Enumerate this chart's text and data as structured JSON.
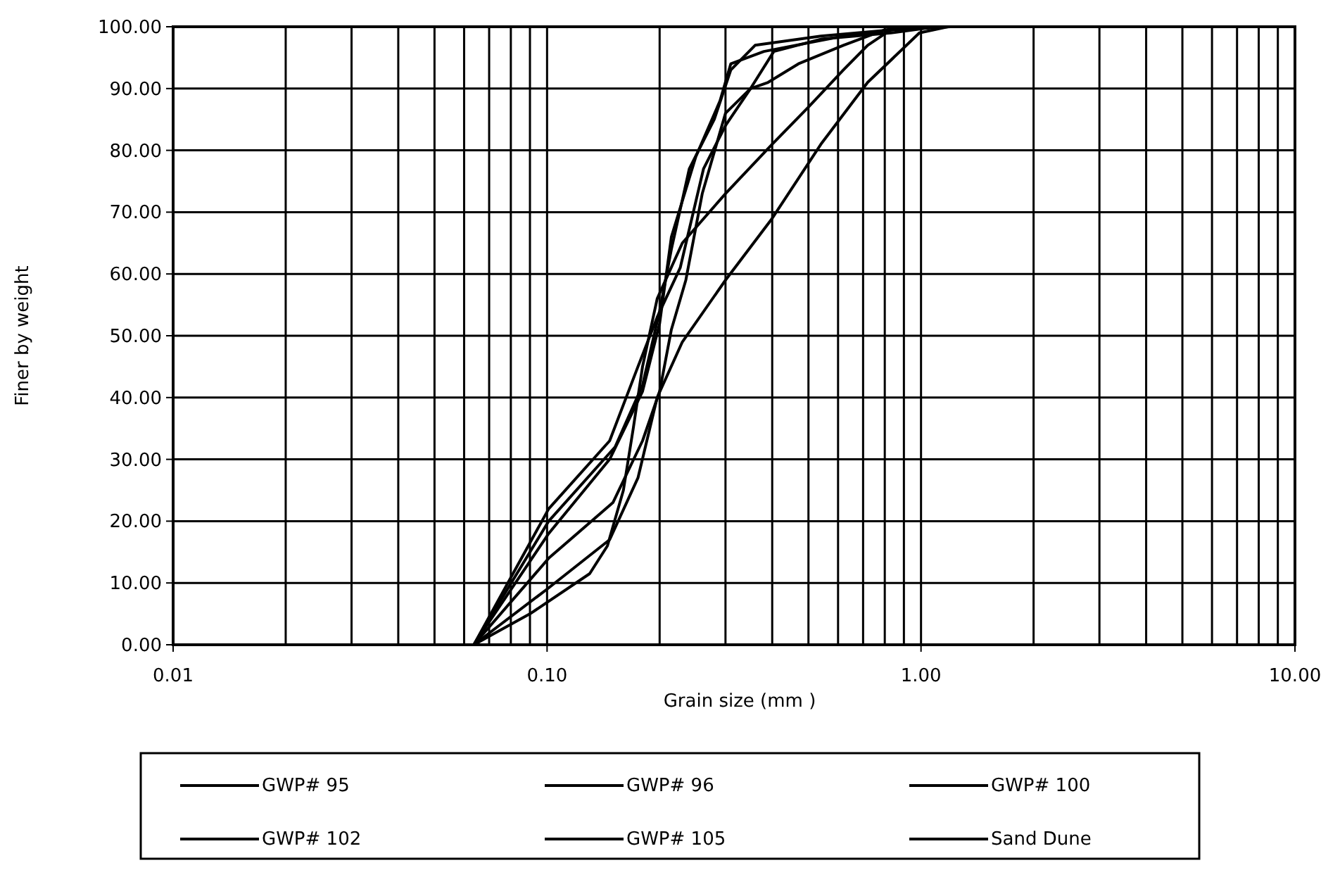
{
  "chart_data": {
    "type": "line",
    "xlabel": "Grain size (mm )",
    "ylabel": "Finer by weight",
    "log": "x",
    "xlim": [
      0.01,
      10
    ],
    "ylim": [
      0,
      100
    ],
    "xticks": [
      0.01,
      {
        "value": 0.1,
        "label": "0.10"
      },
      {
        "value": 1,
        "label": "1.00"
      },
      {
        "value": 10,
        "label": "10.00"
      }
    ],
    "yticks": [
      {
        "value": 0,
        "label": "0.00"
      },
      {
        "value": 10,
        "label": "10.00"
      },
      {
        "value": 20,
        "label": "20.00"
      },
      {
        "value": 30,
        "label": "30.00"
      },
      {
        "value": 40,
        "label": "40.00"
      },
      {
        "value": 50,
        "label": "50.00"
      },
      {
        "value": 60,
        "label": "60.00"
      },
      {
        "value": 70,
        "label": "70.00"
      },
      {
        "value": 80,
        "label": "80.00"
      },
      {
        "value": 90,
        "label": "90.00"
      },
      {
        "value": 100,
        "label": "100.00"
      }
    ],
    "grid": true,
    "legend": "bottom",
    "marker": "none",
    "line_style": "solid",
    "series": [
      {
        "name": "GWP# 95",
        "color": "#000000",
        "x": [
          0.0637,
          0.101,
          0.147,
          0.175,
          0.197,
          0.227,
          0.262,
          0.3,
          0.35,
          0.404,
          0.54,
          0.83,
          1.1
        ],
        "values": [
          0,
          22,
          33,
          45,
          53,
          61,
          77,
          84,
          90,
          96,
          98,
          99,
          100
        ]
      },
      {
        "name": "GWP# 96",
        "color": "#000000",
        "x": [
          0.0637,
          0.101,
          0.152,
          0.18,
          0.2,
          0.215,
          0.24,
          0.28,
          0.31,
          0.36,
          0.54,
          0.83,
          1.15
        ],
        "values": [
          0,
          20,
          32,
          42,
          54,
          64,
          77,
          85,
          93,
          97,
          98.5,
          99.5,
          100
        ]
      },
      {
        "name": "GWP# 100",
        "color": "#000000",
        "x": [
          0.0637,
          0.101,
          0.147,
          0.18,
          0.2,
          0.215,
          0.25,
          0.29,
          0.31,
          0.38,
          0.62,
          0.83,
          1.2
        ],
        "values": [
          0,
          18,
          30,
          41,
          52,
          66,
          79,
          88,
          94,
          96,
          98.5,
          99.5,
          100
        ]
      },
      {
        "name": "GWP# 102",
        "color": "#000000",
        "x": [
          0.0637,
          0.101,
          0.15,
          0.18,
          0.2,
          0.215,
          0.235,
          0.26,
          0.3,
          0.35,
          0.39,
          0.47,
          0.62,
          0.8,
          0.94
        ],
        "values": [
          0,
          14,
          23,
          33,
          41,
          51,
          59,
          73,
          86,
          90,
          91,
          94,
          97,
          99.5,
          100
        ]
      },
      {
        "name": "GWP# 105",
        "color": "#000000",
        "x": [
          0.0637,
          0.09,
          0.13,
          0.145,
          0.16,
          0.17,
          0.18,
          0.197,
          0.23,
          0.3,
          0.4,
          0.5,
          0.62,
          0.72,
          0.83,
          0.99
        ],
        "values": [
          0,
          5,
          11.5,
          16,
          25,
          35,
          45,
          56,
          65,
          73,
          81,
          87,
          93,
          97,
          99.5,
          100
        ]
      },
      {
        "name": "Sand Dune",
        "color": "#000000",
        "x": [
          0.0637,
          0.1,
          0.147,
          0.175,
          0.197,
          0.23,
          0.3,
          0.4,
          0.54,
          0.72,
          0.99,
          1.18
        ],
        "values": [
          0,
          9,
          17,
          27,
          40,
          49,
          59,
          69,
          81,
          91,
          99,
          100
        ]
      }
    ]
  }
}
